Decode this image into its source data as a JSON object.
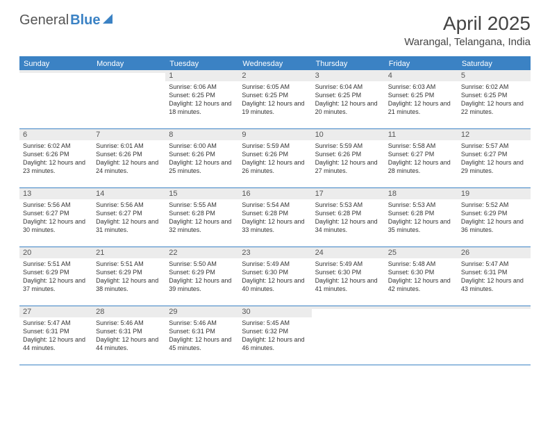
{
  "logo": {
    "part1": "General",
    "part2": "Blue"
  },
  "title": "April 2025",
  "location": "Warangal, Telangana, India",
  "colors": {
    "accent": "#3b82c4",
    "header_bg": "#3b82c4",
    "header_text": "#ffffff",
    "stripe_bg": "#ececec",
    "text": "#333333",
    "border": "#3b82c4"
  },
  "day_names": [
    "Sunday",
    "Monday",
    "Tuesday",
    "Wednesday",
    "Thursday",
    "Friday",
    "Saturday"
  ],
  "weeks": [
    [
      {
        "empty": true
      },
      {
        "empty": true
      },
      {
        "n": "1",
        "sr": "6:06 AM",
        "ss": "6:25 PM",
        "dl": "12 hours and 18 minutes."
      },
      {
        "n": "2",
        "sr": "6:05 AM",
        "ss": "6:25 PM",
        "dl": "12 hours and 19 minutes."
      },
      {
        "n": "3",
        "sr": "6:04 AM",
        "ss": "6:25 PM",
        "dl": "12 hours and 20 minutes."
      },
      {
        "n": "4",
        "sr": "6:03 AM",
        "ss": "6:25 PM",
        "dl": "12 hours and 21 minutes."
      },
      {
        "n": "5",
        "sr": "6:02 AM",
        "ss": "6:25 PM",
        "dl": "12 hours and 22 minutes."
      }
    ],
    [
      {
        "n": "6",
        "sr": "6:02 AM",
        "ss": "6:26 PM",
        "dl": "12 hours and 23 minutes."
      },
      {
        "n": "7",
        "sr": "6:01 AM",
        "ss": "6:26 PM",
        "dl": "12 hours and 24 minutes."
      },
      {
        "n": "8",
        "sr": "6:00 AM",
        "ss": "6:26 PM",
        "dl": "12 hours and 25 minutes."
      },
      {
        "n": "9",
        "sr": "5:59 AM",
        "ss": "6:26 PM",
        "dl": "12 hours and 26 minutes."
      },
      {
        "n": "10",
        "sr": "5:59 AM",
        "ss": "6:26 PM",
        "dl": "12 hours and 27 minutes."
      },
      {
        "n": "11",
        "sr": "5:58 AM",
        "ss": "6:27 PM",
        "dl": "12 hours and 28 minutes."
      },
      {
        "n": "12",
        "sr": "5:57 AM",
        "ss": "6:27 PM",
        "dl": "12 hours and 29 minutes."
      }
    ],
    [
      {
        "n": "13",
        "sr": "5:56 AM",
        "ss": "6:27 PM",
        "dl": "12 hours and 30 minutes."
      },
      {
        "n": "14",
        "sr": "5:56 AM",
        "ss": "6:27 PM",
        "dl": "12 hours and 31 minutes."
      },
      {
        "n": "15",
        "sr": "5:55 AM",
        "ss": "6:28 PM",
        "dl": "12 hours and 32 minutes."
      },
      {
        "n": "16",
        "sr": "5:54 AM",
        "ss": "6:28 PM",
        "dl": "12 hours and 33 minutes."
      },
      {
        "n": "17",
        "sr": "5:53 AM",
        "ss": "6:28 PM",
        "dl": "12 hours and 34 minutes."
      },
      {
        "n": "18",
        "sr": "5:53 AM",
        "ss": "6:28 PM",
        "dl": "12 hours and 35 minutes."
      },
      {
        "n": "19",
        "sr": "5:52 AM",
        "ss": "6:29 PM",
        "dl": "12 hours and 36 minutes."
      }
    ],
    [
      {
        "n": "20",
        "sr": "5:51 AM",
        "ss": "6:29 PM",
        "dl": "12 hours and 37 minutes."
      },
      {
        "n": "21",
        "sr": "5:51 AM",
        "ss": "6:29 PM",
        "dl": "12 hours and 38 minutes."
      },
      {
        "n": "22",
        "sr": "5:50 AM",
        "ss": "6:29 PM",
        "dl": "12 hours and 39 minutes."
      },
      {
        "n": "23",
        "sr": "5:49 AM",
        "ss": "6:30 PM",
        "dl": "12 hours and 40 minutes."
      },
      {
        "n": "24",
        "sr": "5:49 AM",
        "ss": "6:30 PM",
        "dl": "12 hours and 41 minutes."
      },
      {
        "n": "25",
        "sr": "5:48 AM",
        "ss": "6:30 PM",
        "dl": "12 hours and 42 minutes."
      },
      {
        "n": "26",
        "sr": "5:47 AM",
        "ss": "6:31 PM",
        "dl": "12 hours and 43 minutes."
      }
    ],
    [
      {
        "n": "27",
        "sr": "5:47 AM",
        "ss": "6:31 PM",
        "dl": "12 hours and 44 minutes."
      },
      {
        "n": "28",
        "sr": "5:46 AM",
        "ss": "6:31 PM",
        "dl": "12 hours and 44 minutes."
      },
      {
        "n": "29",
        "sr": "5:46 AM",
        "ss": "6:31 PM",
        "dl": "12 hours and 45 minutes."
      },
      {
        "n": "30",
        "sr": "5:45 AM",
        "ss": "6:32 PM",
        "dl": "12 hours and 46 minutes."
      },
      {
        "empty": true
      },
      {
        "empty": true
      },
      {
        "empty": true
      }
    ]
  ],
  "labels": {
    "sunrise": "Sunrise:",
    "sunset": "Sunset:",
    "daylight": "Daylight:"
  }
}
